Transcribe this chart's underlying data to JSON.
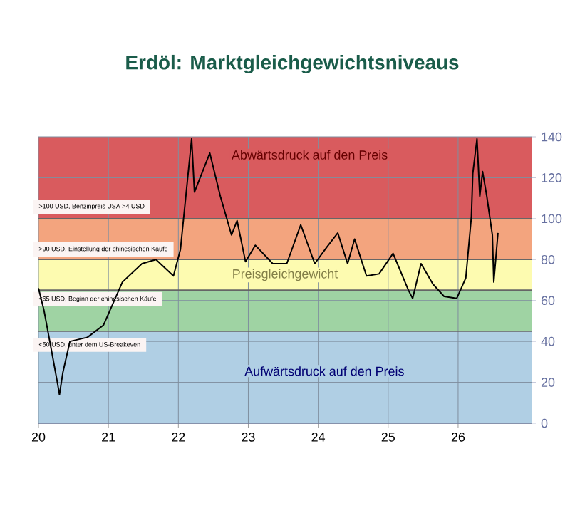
{
  "chart_data": {
    "type": "line",
    "title": "Erdöl: Marktgleichgewichtsniveaus",
    "x": [
      20.0,
      20.08,
      20.2,
      20.27,
      20.3,
      20.35,
      20.45,
      20.7,
      20.93,
      21.2,
      21.48,
      21.68,
      21.93,
      22.03,
      22.19,
      22.23,
      22.45,
      22.6,
      22.76,
      22.84,
      22.96,
      23.1,
      23.35,
      23.55,
      23.75,
      23.95,
      24.12,
      24.28,
      24.42,
      24.52,
      24.69,
      24.87,
      25.07,
      25.29,
      25.35,
      25.47,
      25.64,
      25.8,
      25.98,
      26.11,
      26.19,
      26.21,
      26.27,
      26.31,
      26.35,
      26.41,
      26.49,
      26.51,
      26.57
    ],
    "series": [
      {
        "color": "#000000",
        "values": [
          66,
          55,
          33,
          20,
          14,
          25,
          40,
          42,
          48,
          69,
          78,
          80,
          72,
          85,
          139,
          113,
          132,
          111,
          92,
          99,
          79,
          87,
          78,
          78,
          97,
          78,
          86,
          93,
          78,
          90,
          72,
          73,
          83,
          65,
          61,
          78,
          68,
          62,
          61,
          71,
          101,
          122,
          139,
          111,
          123,
          111,
          92,
          69,
          93
        ]
      }
    ],
    "xlim": [
      20,
      27.05
    ],
    "xticks": [
      20,
      21,
      22,
      23,
      24,
      25,
      26
    ],
    "ylim": [
      0,
      140
    ],
    "yticks": [
      0,
      20,
      40,
      60,
      80,
      100,
      120,
      140
    ],
    "bands": [
      {
        "axis": "y",
        "from": 100,
        "to": 140,
        "label": "Abwärtsdruck auf den Preis",
        "color": "#d95b5e"
      },
      {
        "axis": "y",
        "from": 80,
        "to": 100,
        "color": "#f3a47e"
      },
      {
        "axis": "y",
        "from": 65,
        "to": 80,
        "label": "Preisgleichgewicht",
        "color": "#fdfbb0"
      },
      {
        "axis": "y",
        "from": 45,
        "to": 65,
        "color": "#9fd3a3"
      },
      {
        "axis": "y",
        "from": 0,
        "to": 45,
        "label": "Aufwärtsdruck auf den Preis",
        "color": "#b0cfe4"
      }
    ],
    "annotations": [
      ">100 USD, Benzinpreis USA >4 USD",
      ">90 USD, Einstellung der chinesischen Käufe",
      "<65 USD, Beginn der chinesischen Käufe",
      "<50 USD, unter dem US-Breakeven"
    ],
    "grid": true,
    "marker": "none",
    "line_style": "solid"
  }
}
